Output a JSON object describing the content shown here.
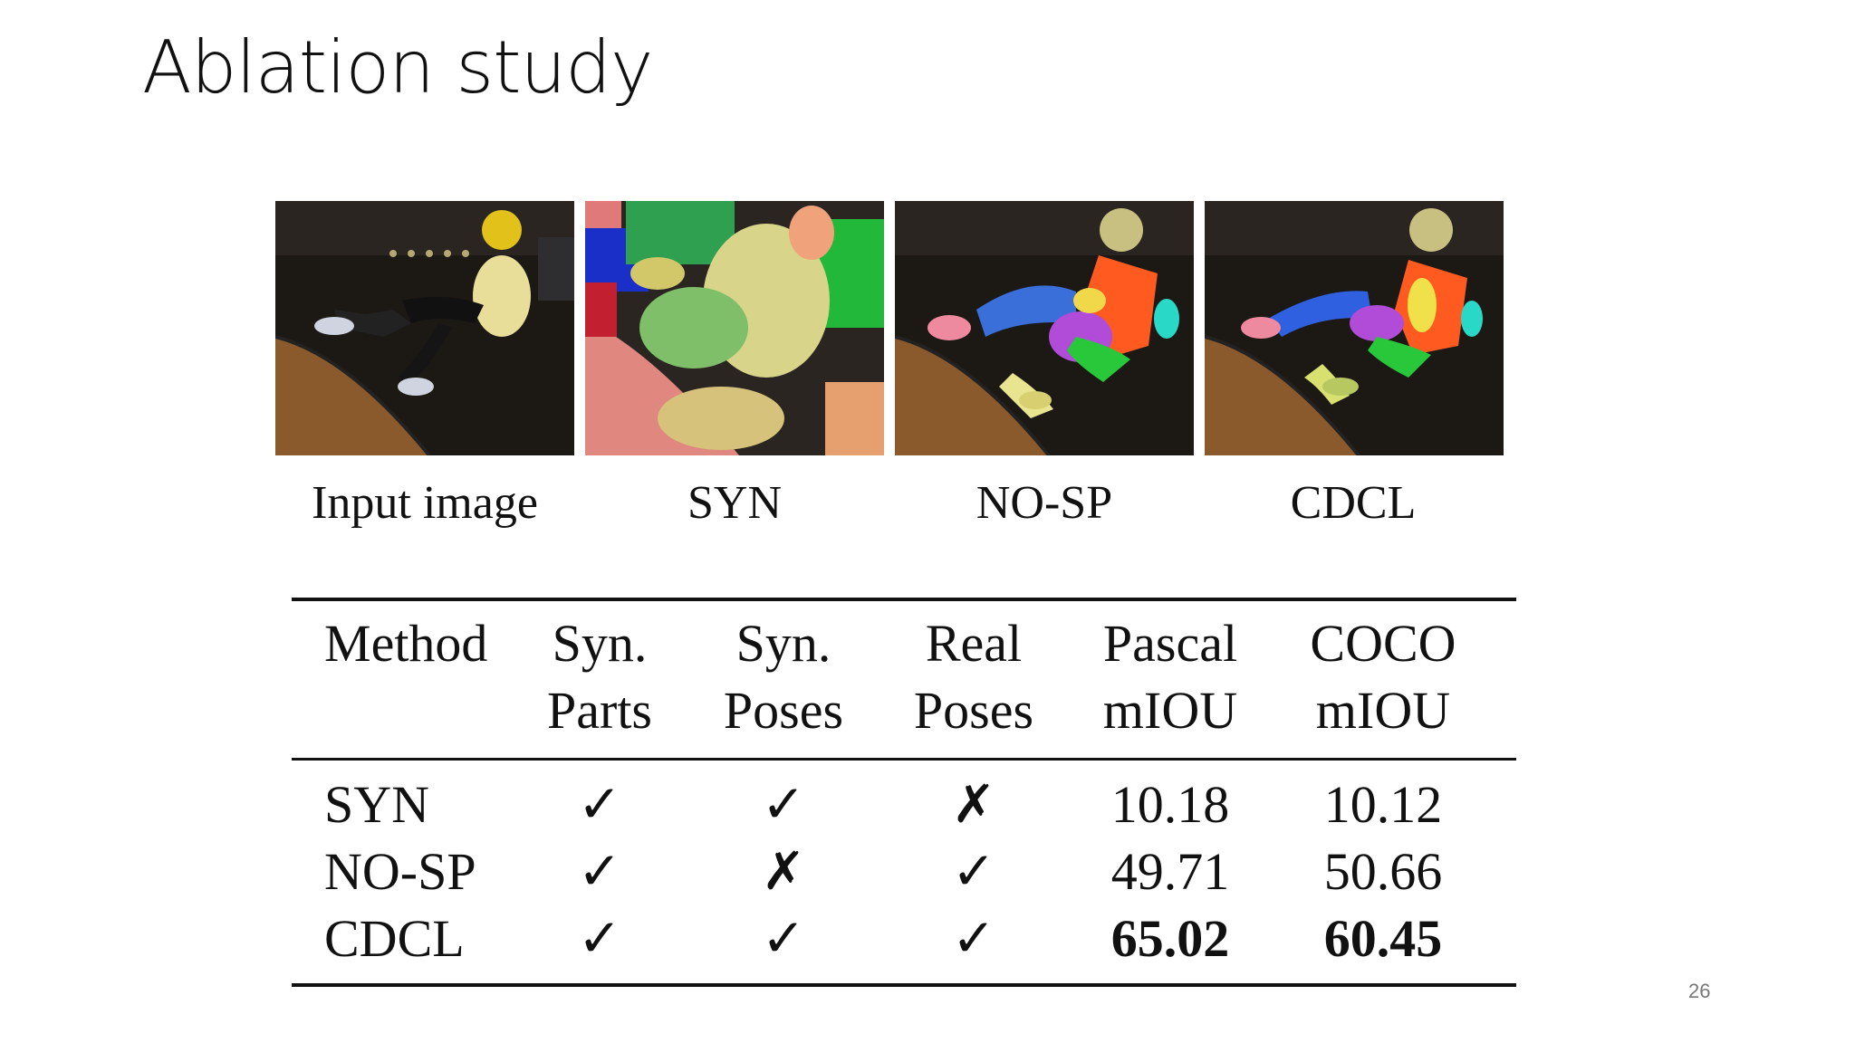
{
  "slide": {
    "title": "Ablation study",
    "page_number": "26"
  },
  "figure": {
    "captions": [
      "Input image",
      "SYN",
      "NO-SP",
      "CDCL"
    ]
  },
  "table": {
    "headers": [
      {
        "line1": "Method",
        "line2": ""
      },
      {
        "line1": "Syn.",
        "line2": "Parts"
      },
      {
        "line1": "Syn.",
        "line2": "Poses"
      },
      {
        "line1": "Real",
        "line2": "Poses"
      },
      {
        "line1": "Pascal",
        "line2": "mIOU"
      },
      {
        "line1": "COCO",
        "line2": "mIOU"
      }
    ],
    "rows": [
      {
        "method": "SYN",
        "syn_parts": "✓",
        "syn_poses": "✓",
        "real_poses": "✗",
        "pascal": "10.18",
        "coco": "10.12"
      },
      {
        "method": "NO-SP",
        "syn_parts": "✓",
        "syn_poses": "✗",
        "real_poses": "✓",
        "pascal": "49.71",
        "coco": "50.66"
      },
      {
        "method": "CDCL",
        "syn_parts": "✓",
        "syn_poses": "✓",
        "real_poses": "✓",
        "pascal": "65.02",
        "coco": "60.45"
      }
    ]
  }
}
